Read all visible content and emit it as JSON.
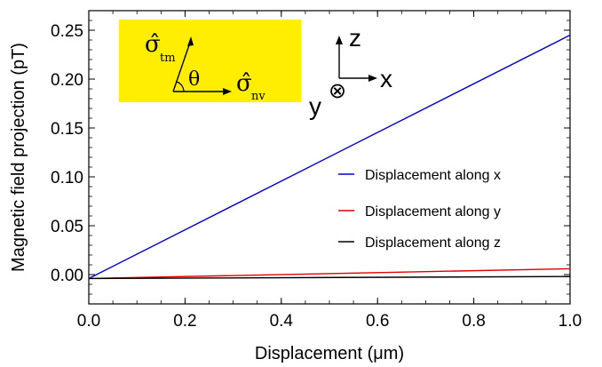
{
  "chart_data": {
    "type": "line",
    "xlabel": "Displacement (μm)",
    "ylabel": "Magnetic field projection (pT)",
    "xlim": [
      0.0,
      1.0
    ],
    "ylim": [
      -0.03,
      0.27
    ],
    "x_ticks": [
      "0.0",
      "0.2",
      "0.4",
      "0.6",
      "0.8",
      "1.0"
    ],
    "y_ticks": [
      "0.00",
      "0.05",
      "0.10",
      "0.15",
      "0.20",
      "0.25"
    ],
    "x": [
      0.0,
      1.0
    ],
    "series": [
      {
        "name": "Displacement along x",
        "color": "#0000cc",
        "values": [
          -0.004,
          0.245
        ]
      },
      {
        "name": "Displacement along y",
        "color": "#e00000",
        "values": [
          -0.004,
          0.006
        ]
      },
      {
        "name": "Displacement along z",
        "color": "#000000",
        "values": [
          -0.004,
          -0.002
        ]
      }
    ],
    "legend_position": "center-right",
    "grid": false
  },
  "inset": {
    "background": "#ffee00",
    "sigma_tm_label": "σ̂",
    "sigma_tm_sub": "tm",
    "sigma_nv_label": "σ̂",
    "sigma_nv_sub": "nv",
    "angle_label": "θ"
  },
  "coordinates": {
    "z_label": "z",
    "x_label": "x",
    "y_label": "y",
    "into_page_symbol": "⊗"
  }
}
